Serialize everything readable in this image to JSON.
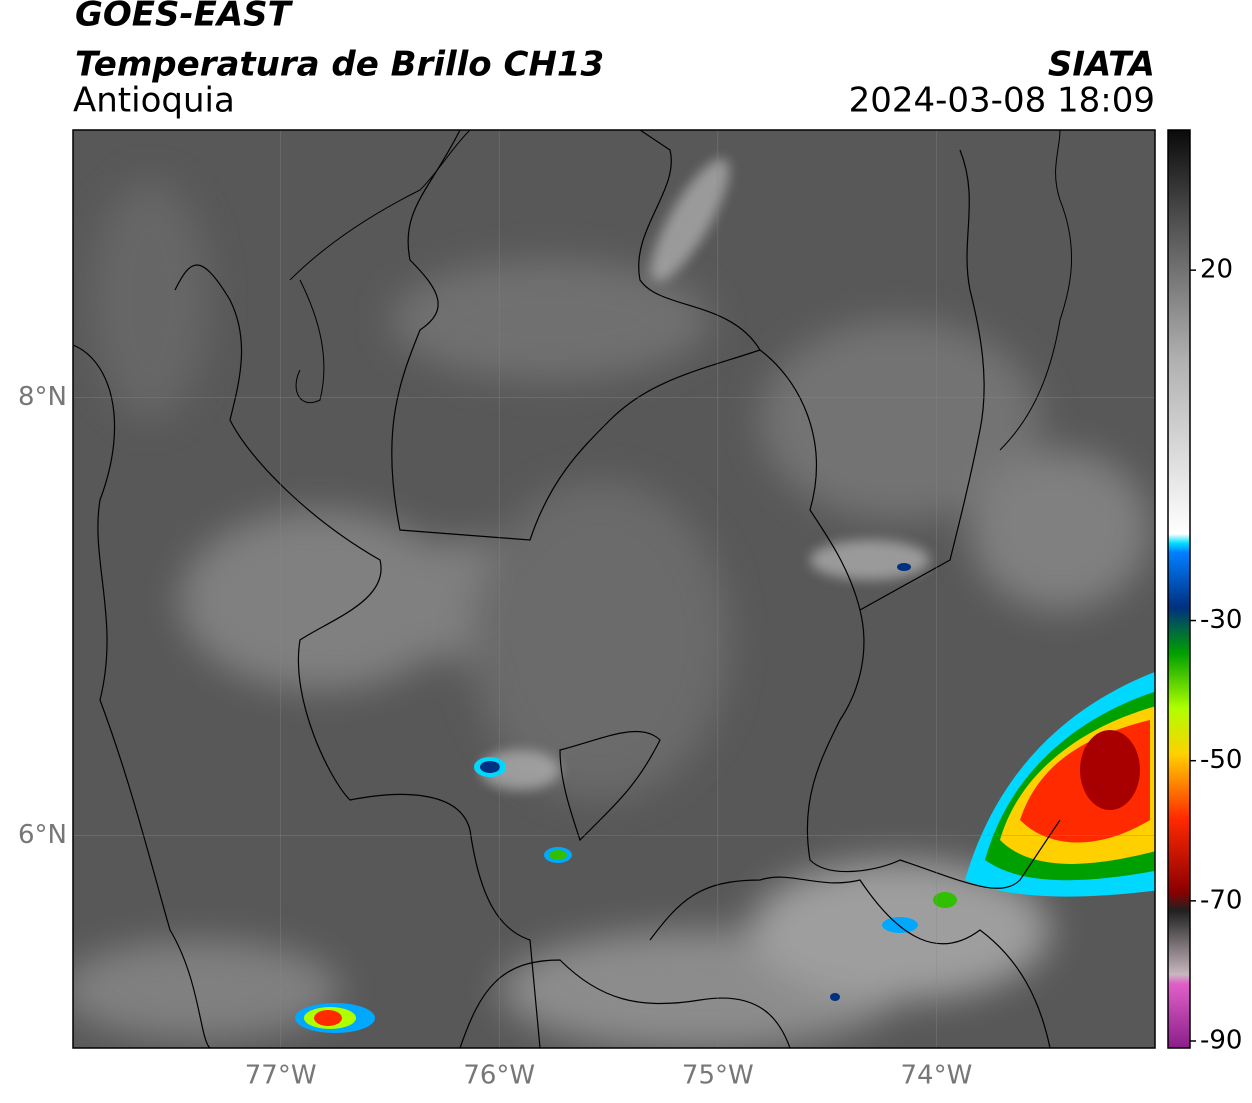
{
  "map": {
    "title": "GOES-EAST",
    "subtitle": "Temperatura de Brillo CH13",
    "region": "Antioquia",
    "source": "SIATA",
    "timestamp": "2024-03-08 18:09",
    "xlim": [
      -77.95,
      -73
    ],
    "ylim": [
      5.03,
      9.22
    ],
    "xticks": [
      {
        "value": -77,
        "label": "77°W"
      },
      {
        "value": -76,
        "label": "76°W"
      },
      {
        "value": -75,
        "label": "75°W"
      },
      {
        "value": -74,
        "label": "74°W"
      }
    ],
    "yticks": [
      {
        "value": 8,
        "label": "8°N"
      },
      {
        "value": 6,
        "label": "6°N"
      }
    ],
    "grid": true,
    "colorbar": {
      "lim": [
        -91,
        40
      ],
      "ticks": [
        20,
        -30,
        -50,
        -70,
        -90
      ]
    }
  }
}
